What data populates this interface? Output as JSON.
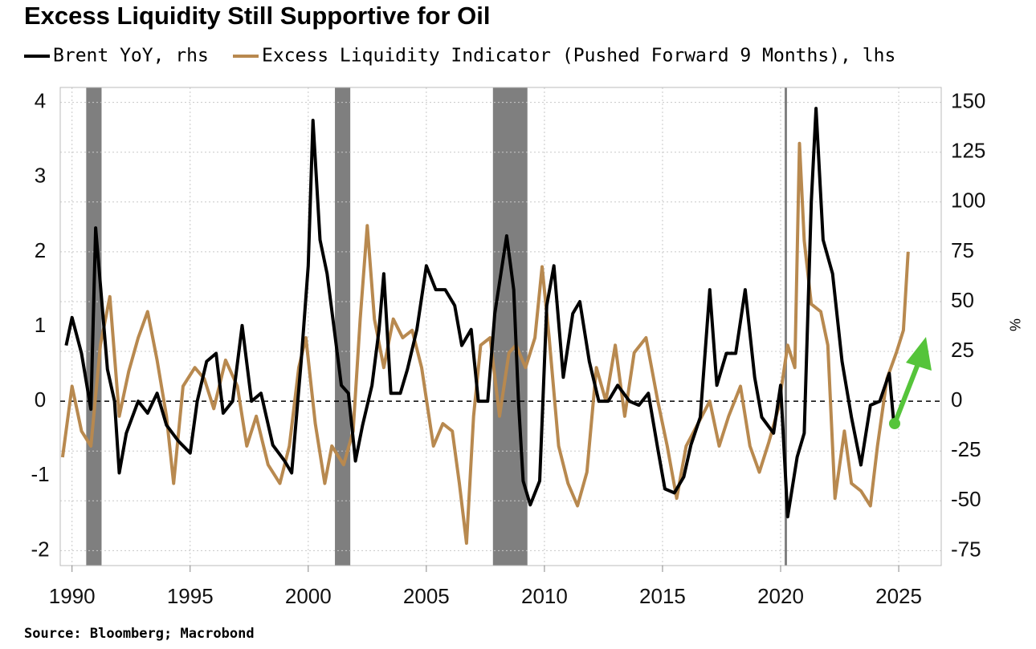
{
  "chart_data": {
    "type": "line",
    "title": "Excess Liquidity Still Supportive for Oil",
    "source": "Source: Bloomberg; Macrobond",
    "y2label": "%",
    "xlim": [
      1989.5,
      2026.8
    ],
    "xticks": [
      1990,
      1995,
      2000,
      2005,
      2010,
      2015,
      2020,
      2025
    ],
    "ylim": [
      -2.2,
      4.2
    ],
    "yticks": [
      -2,
      -1,
      0,
      1,
      2,
      3,
      4
    ],
    "y2lim": [
      -82.5,
      157.5
    ],
    "y2ticks": [
      -75,
      -50,
      -25,
      0,
      25,
      50,
      75,
      100,
      125,
      150
    ],
    "grid": true,
    "zero_line": true,
    "shaded_periods": [
      {
        "start": 1990.6,
        "end": 1991.25,
        "color": "#7f7f7f"
      },
      {
        "start": 2001.13,
        "end": 2001.78,
        "color": "#7f7f7f"
      },
      {
        "start": 2007.82,
        "end": 2009.28,
        "color": "#7f7f7f"
      },
      {
        "start": 2020.17,
        "end": 2020.27,
        "color": "#7f7f7f"
      }
    ],
    "series": [
      {
        "name": "Brent YoY, rhs",
        "color": "#000000",
        "axis": "y2",
        "x": [
          1989.75,
          1990.0,
          1990.4,
          1990.8,
          1991.0,
          1991.5,
          1991.8,
          1992.0,
          1992.3,
          1992.8,
          1993.2,
          1993.6,
          1994.0,
          1994.5,
          1995.0,
          1995.3,
          1995.7,
          1996.1,
          1996.4,
          1996.8,
          1997.2,
          1997.6,
          1998.0,
          1998.5,
          1999.0,
          1999.3,
          1999.7,
          2000.0,
          2000.2,
          2000.5,
          2000.8,
          2001.1,
          2001.4,
          2001.7,
          2002.0,
          2002.3,
          2002.7,
          2003.0,
          2003.2,
          2003.5,
          2003.9,
          2004.2,
          2004.6,
          2005.0,
          2005.4,
          2005.8,
          2006.2,
          2006.5,
          2006.9,
          2007.2,
          2007.6,
          2007.9,
          2008.4,
          2008.7,
          2008.9,
          2009.1,
          2009.4,
          2009.8,
          2010.1,
          2010.4,
          2010.8,
          2011.2,
          2011.5,
          2011.9,
          2012.3,
          2012.7,
          2013.1,
          2013.6,
          2014.0,
          2014.4,
          2014.8,
          2015.1,
          2015.5,
          2015.9,
          2016.2,
          2016.6,
          2017.0,
          2017.3,
          2017.7,
          2018.1,
          2018.5,
          2018.9,
          2019.2,
          2019.7,
          2020.0,
          2020.3,
          2020.7,
          2021.0,
          2021.3,
          2021.5,
          2021.8,
          2022.2,
          2022.6,
          2023.0,
          2023.4,
          2023.8,
          2024.2,
          2024.6,
          2024.8
        ],
        "values": [
          28,
          42,
          24,
          -4,
          87,
          16,
          0,
          -36,
          -16,
          0,
          -6,
          4,
          -12,
          -20,
          -26,
          0,
          20,
          24,
          -6,
          0,
          38,
          0,
          4,
          -22,
          -30,
          -36,
          20,
          68,
          141,
          81,
          64,
          36,
          8,
          4,
          -30,
          -12,
          8,
          36,
          64,
          4,
          4,
          16,
          36,
          68,
          56,
          56,
          48,
          28,
          36,
          0,
          0,
          44,
          83,
          56,
          0,
          -40,
          -52,
          -40,
          48,
          68,
          12,
          44,
          50,
          20,
          0,
          0,
          8,
          0,
          -2,
          4,
          -24,
          -44,
          -46,
          -38,
          -22,
          -8,
          56,
          8,
          24,
          24,
          56,
          12,
          -8,
          -16,
          8,
          -58,
          -28,
          -16,
          100,
          147,
          81,
          64,
          20,
          -8,
          -32,
          -2,
          0,
          14,
          -12
        ]
      },
      {
        "name": "Excess Liquidity Indicator (Pushed Forward 9 Months), lhs",
        "color": "#b8894f",
        "axis": "y",
        "x": [
          1989.6,
          1990.0,
          1990.4,
          1990.8,
          1991.2,
          1991.6,
          1992.0,
          1992.4,
          1992.8,
          1993.2,
          1993.6,
          1994.0,
          1994.3,
          1994.7,
          1995.2,
          1995.6,
          1996.0,
          1996.5,
          1997.0,
          1997.4,
          1997.8,
          1998.3,
          1998.8,
          1999.2,
          1999.6,
          1999.9,
          2000.3,
          2000.7,
          2001.0,
          2001.5,
          2001.9,
          2002.2,
          2002.5,
          2002.8,
          2003.2,
          2003.6,
          2004.0,
          2004.4,
          2004.8,
          2005.3,
          2005.7,
          2006.1,
          2006.4,
          2006.7,
          2007.0,
          2007.3,
          2007.7,
          2008.1,
          2008.5,
          2008.8,
          2009.2,
          2009.6,
          2009.9,
          2010.2,
          2010.6,
          2011.0,
          2011.4,
          2011.8,
          2012.2,
          2012.6,
          2013.0,
          2013.4,
          2013.8,
          2014.3,
          2014.8,
          2015.2,
          2015.6,
          2016.0,
          2016.5,
          2017.0,
          2017.4,
          2017.8,
          2018.3,
          2018.7,
          2019.1,
          2019.5,
          2019.9,
          2020.3,
          2020.6,
          2020.8,
          2021.0,
          2021.3,
          2021.7,
          2022.0,
          2022.3,
          2022.7,
          2023.0,
          2023.4,
          2023.8,
          2024.1,
          2024.5,
          2024.9,
          2025.2,
          2025.4
        ],
        "values": [
          -0.75,
          0.2,
          -0.4,
          -0.6,
          0.75,
          1.4,
          -0.2,
          0.4,
          0.85,
          1.2,
          0.55,
          -0.2,
          -1.1,
          0.2,
          0.45,
          0.3,
          -0.1,
          0.55,
          0.2,
          -0.6,
          -0.2,
          -0.85,
          -1.1,
          -0.6,
          0.45,
          0.85,
          -0.3,
          -1.1,
          -0.6,
          -0.85,
          -0.4,
          1.1,
          2.35,
          1.1,
          0.45,
          1.1,
          0.85,
          0.95,
          0.45,
          -0.6,
          -0.3,
          -0.4,
          -1.1,
          -1.9,
          -0.2,
          0.75,
          0.85,
          -0.2,
          0.65,
          0.75,
          0.45,
          0.85,
          1.8,
          0.85,
          -0.6,
          -1.1,
          -1.4,
          -0.95,
          0.45,
          0,
          0.75,
          -0.2,
          0.65,
          0.85,
          0,
          -0.6,
          -1.3,
          -0.6,
          -0.3,
          0,
          -0.6,
          -0.2,
          0.2,
          -0.6,
          -0.95,
          -0.55,
          -0.1,
          0.75,
          0.45,
          3.45,
          2.15,
          1.3,
          1.2,
          0.75,
          -1.3,
          -0.4,
          -1.1,
          -1.2,
          -1.4,
          -0.6,
          0.3,
          0.65,
          0.95,
          2.0
        ]
      }
    ]
  }
}
